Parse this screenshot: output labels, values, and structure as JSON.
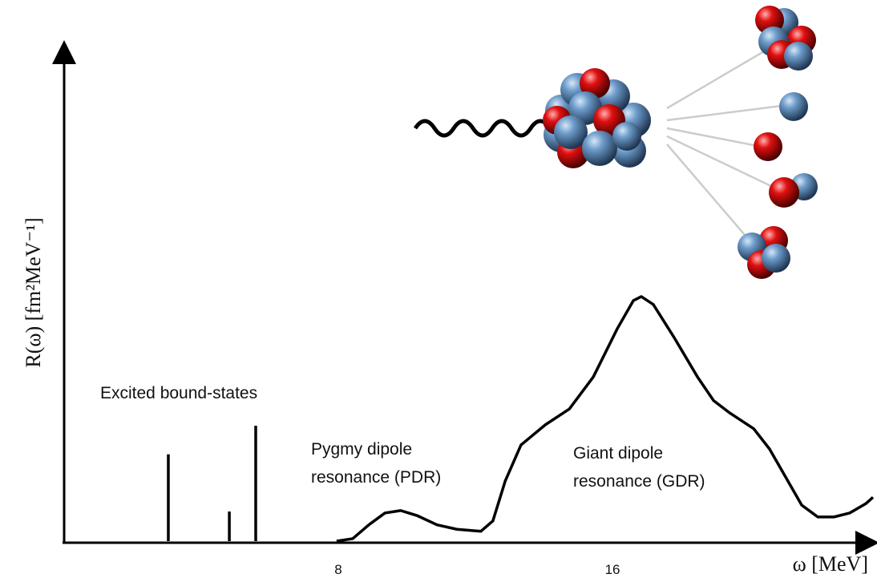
{
  "chart_data": {
    "type": "line",
    "x_label": "ω [MeV]",
    "y_label": "R(ω) [fm²MeV⁻¹]",
    "xlim": [
      0,
      23.6
    ],
    "ylim": [
      0,
      10
    ],
    "xticks": [
      8,
      16
    ],
    "color": "#000000",
    "x": [
      7.95,
      8.42,
      8.89,
      9.36,
      9.82,
      10.29,
      10.88,
      11.46,
      12.16,
      12.51,
      12.87,
      13.33,
      14.04,
      14.74,
      15.44,
      16.14,
      16.61,
      16.84,
      17.19,
      17.78,
      18.48,
      18.95,
      19.42,
      20.12,
      20.58,
      21.05,
      21.52,
      21.99,
      22.46,
      22.92,
      23.39,
      23.6
    ],
    "values": [
      0,
      0.05,
      0.33,
      0.57,
      0.62,
      0.52,
      0.33,
      0.24,
      0.2,
      0.41,
      1.22,
      1.95,
      2.36,
      2.68,
      3.33,
      4.31,
      4.88,
      4.96,
      4.8,
      4.15,
      3.33,
      2.85,
      2.6,
      2.28,
      1.87,
      1.3,
      0.73,
      0.49,
      0.49,
      0.57,
      0.76,
      0.89
    ],
    "bound_states": {
      "x": [
        3.04,
        4.82,
        5.59
      ],
      "values": [
        1.76,
        0.6,
        2.34
      ]
    },
    "annotations": {
      "bound": [
        "Excited bound-states"
      ],
      "pdr": [
        "Pygmy dipole",
        "resonance (PDR)"
      ],
      "gdr": [
        "Giant dipole",
        "resonance (GDR)"
      ]
    }
  }
}
